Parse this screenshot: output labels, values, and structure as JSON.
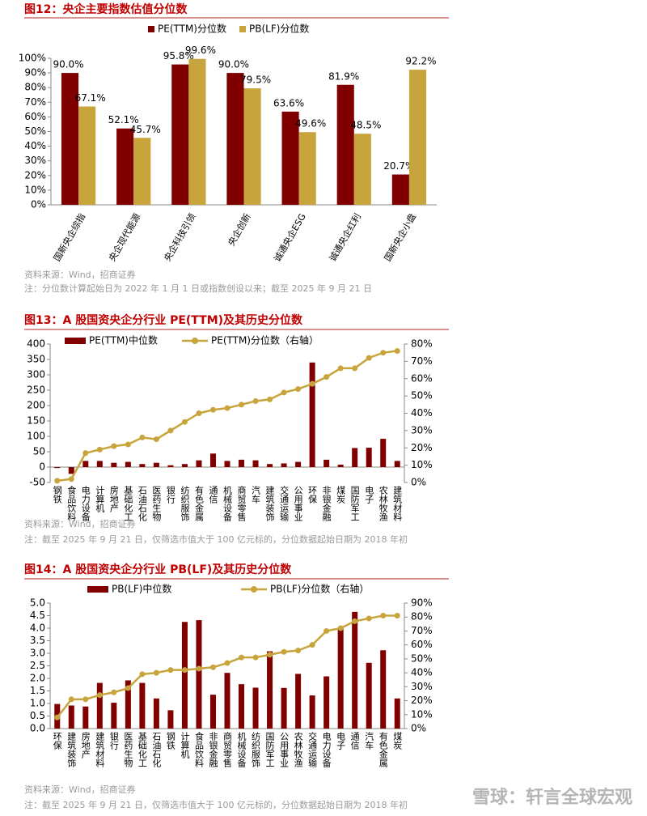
{
  "chart_data": [
    {
      "type": "bar",
      "title": "图12：央企主要指数估值分位数",
      "categories": [
        "国新央企综指",
        "央企现代能源",
        "央企科技引领",
        "央企创新",
        "诚通央企ESG",
        "诚通央企红利",
        "国新央企小盘"
      ],
      "series": [
        {
          "name": "PE(TTM)分位数",
          "color": "#800000",
          "values": [
            90.0,
            52.1,
            95.8,
            90.0,
            63.6,
            81.9,
            20.7
          ],
          "value_labels": [
            "90.0%",
            "52.1%",
            "95.8%",
            "90.0%",
            "63.6%",
            "81.9%",
            "20.7%"
          ]
        },
        {
          "name": "PB(LF)分位数",
          "color": "#c8a43c",
          "values": [
            67.1,
            45.7,
            99.6,
            79.5,
            49.6,
            48.5,
            92.2
          ],
          "value_labels": [
            "67.1%",
            "45.7%",
            "99.6%",
            "79.5%",
            "49.6%",
            "48.5%",
            "92.2%"
          ]
        }
      ],
      "ylim": [
        0,
        100
      ],
      "yticks": [
        {
          "value": 0,
          "label": "0%"
        },
        {
          "value": 10,
          "label": "10%"
        },
        {
          "value": 20,
          "label": "20%"
        },
        {
          "value": 30,
          "label": "30%"
        },
        {
          "value": 40,
          "label": "40%"
        },
        {
          "value": 50,
          "label": "50%"
        },
        {
          "value": 60,
          "label": "60%"
        },
        {
          "value": 70,
          "label": "70%"
        },
        {
          "value": 80,
          "label": "80%"
        },
        {
          "value": 90,
          "label": "90%"
        },
        {
          "value": 100,
          "label": "100%"
        }
      ],
      "source": "资料来源：Wind，招商证券",
      "note": "注：分位数计算起始日为 2022 年 1 月 1 日或指数创设以来；截至 2025 年 9 月 21 日"
    },
    {
      "type": "combo",
      "title": "图13：A 股国资央企分行业 PE(TTM)及其历史分位数",
      "categories": [
        "钢铁",
        "食品饮料",
        "电力设备",
        "计算机",
        "房地产",
        "基础化工",
        "石油石化",
        "医药生物",
        "银行",
        "纺织服饰",
        "有色金属",
        "通信",
        "机械设备",
        "商贸零售",
        "汽车",
        "建筑装饰",
        "交通运输",
        "公用事业",
        "环保",
        "非银金融",
        "煤炭",
        "国防军工",
        "电子",
        "农林牧渔",
        "建筑材料"
      ],
      "series": [
        {
          "name": "PE(TTM)中位数",
          "kind": "bar",
          "color": "#800000",
          "values": [
            -3,
            -22,
            20,
            20,
            14,
            17,
            10,
            14,
            6,
            10,
            22,
            44,
            20,
            24,
            22,
            10,
            12,
            17,
            340,
            24,
            8,
            62,
            63,
            92,
            20
          ]
        },
        {
          "name": "PE(TTM)分位数（右轴）",
          "kind": "line",
          "axis": "y2",
          "color": "#c8a43c",
          "values": [
            1,
            2,
            17,
            19,
            21,
            22,
            26,
            25,
            30,
            35,
            40,
            42,
            43,
            45,
            47,
            48,
            52,
            54,
            57,
            61,
            66,
            66,
            72,
            75,
            76
          ]
        }
      ],
      "ylim": [
        -50,
        400
      ],
      "yticks": [
        -50,
        0,
        50,
        100,
        150,
        200,
        250,
        300,
        350,
        400
      ],
      "y2lim": [
        0,
        80
      ],
      "y2ticks": [
        {
          "value": 0,
          "label": "0%"
        },
        {
          "value": 10,
          "label": "10%"
        },
        {
          "value": 20,
          "label": "20%"
        },
        {
          "value": 30,
          "label": "30%"
        },
        {
          "value": 40,
          "label": "40%"
        },
        {
          "value": 50,
          "label": "50%"
        },
        {
          "value": 60,
          "label": "60%"
        },
        {
          "value": 70,
          "label": "70%"
        },
        {
          "value": 80,
          "label": "80%"
        }
      ],
      "source": "资料来源：Wind，招商证券",
      "note": "注：截至 2025 年 9 月 21 日，仅筛选市值大于 100 亿元标的，分位数据起始日期为 2018 年初"
    },
    {
      "type": "combo",
      "title": "图14：A 股国资央企分行业 PB(LF)及其历史分位数",
      "categories": [
        "环保",
        "建筑装饰",
        "房地产",
        "建筑材料",
        "银行",
        "医药生物",
        "基础化工",
        "石油石化",
        "钢铁",
        "计算机",
        "食品饮料",
        "非银金融",
        "商贸零售",
        "机械设备",
        "纺织服饰",
        "国防军工",
        "公用事业",
        "农林牧渔",
        "交通运输",
        "电力设备",
        "电子",
        "通信",
        "汽车",
        "有色金属",
        "煤炭"
      ],
      "series": [
        {
          "name": "PB(LF)中位数",
          "kind": "bar",
          "color": "#800000",
          "values": [
            0.98,
            0.92,
            0.88,
            1.82,
            1.03,
            1.92,
            1.82,
            1.2,
            0.73,
            4.25,
            4.32,
            1.35,
            2.22,
            1.77,
            1.63,
            3.08,
            1.62,
            2.18,
            1.32,
            2.08,
            4.0,
            4.65,
            2.62,
            3.12,
            1.2
          ]
        },
        {
          "name": "PB(LF)分位数（右轴）",
          "kind": "line",
          "axis": "y2",
          "color": "#c8a43c",
          "values": [
            8,
            21,
            21,
            24,
            26,
            29,
            39,
            40,
            42,
            42,
            43,
            44,
            47,
            51,
            51,
            53,
            55,
            56,
            60,
            70,
            72,
            77,
            79,
            81,
            81
          ]
        }
      ],
      "ylim": [
        0,
        5
      ],
      "yticks": [
        {
          "value": 0,
          "label": "0.0"
        },
        0.5,
        {
          "value": 1,
          "label": "1.0"
        },
        1.5,
        {
          "value": 2,
          "label": "2.0"
        },
        2.5,
        {
          "value": 3,
          "label": "3.0"
        },
        3.5,
        {
          "value": 4,
          "label": "4.0"
        },
        4.5,
        {
          "value": 5,
          "label": "5.0"
        }
      ],
      "y2lim": [
        0,
        90
      ],
      "y2ticks": [
        {
          "value": 0,
          "label": "0%"
        },
        {
          "value": 10,
          "label": "10%"
        },
        {
          "value": 20,
          "label": "20%"
        },
        {
          "value": 30,
          "label": "30%"
        },
        {
          "value": 40,
          "label": "40%"
        },
        {
          "value": 50,
          "label": "50%"
        },
        {
          "value": 60,
          "label": "60%"
        },
        {
          "value": 70,
          "label": "70%"
        },
        {
          "value": 80,
          "label": "80%"
        },
        {
          "value": 90,
          "label": "90%"
        }
      ],
      "source": "资料来源：Wind，招商证券",
      "note": "注：截至 2025 年 9 月 21 日，仅筛选市值大于 100 亿元标的，分位数据起始日期为 2018 年初"
    }
  ],
  "watermark": "雪球：轩言全球宏观"
}
